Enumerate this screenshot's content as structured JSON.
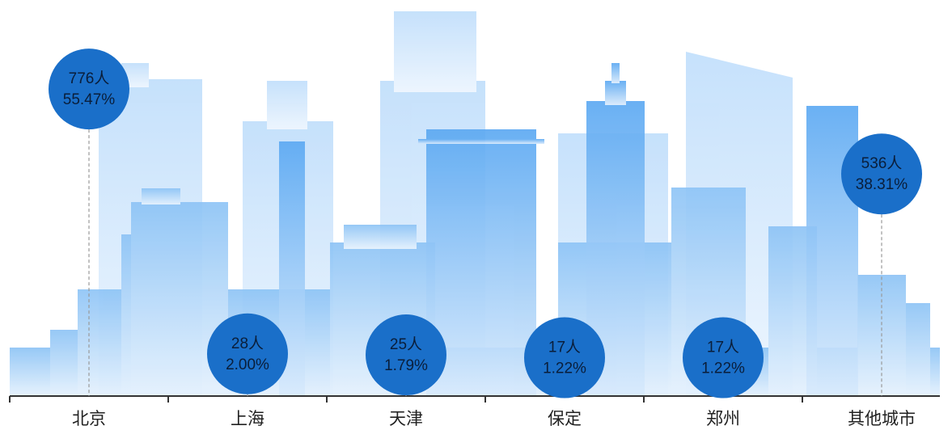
{
  "chart_data": {
    "type": "bubble",
    "categories": [
      "北京",
      "上海",
      "天津",
      "保定",
      "郑州",
      "其他城市"
    ],
    "color": "#1a6fc9",
    "series": [
      {
        "values": [
          776,
          28,
          25,
          17,
          17,
          536
        ],
        "value_labels": [
          "776人",
          "28人",
          "25人",
          "17人",
          "17人",
          "536人"
        ]
      },
      {
        "values": [
          55.47,
          2.0,
          1.79,
          1.22,
          1.22,
          38.31
        ],
        "value_labels": [
          "55.47%",
          "2.00%",
          "1.79%",
          "1.22%",
          "1.22%",
          "38.31%"
        ]
      }
    ]
  }
}
